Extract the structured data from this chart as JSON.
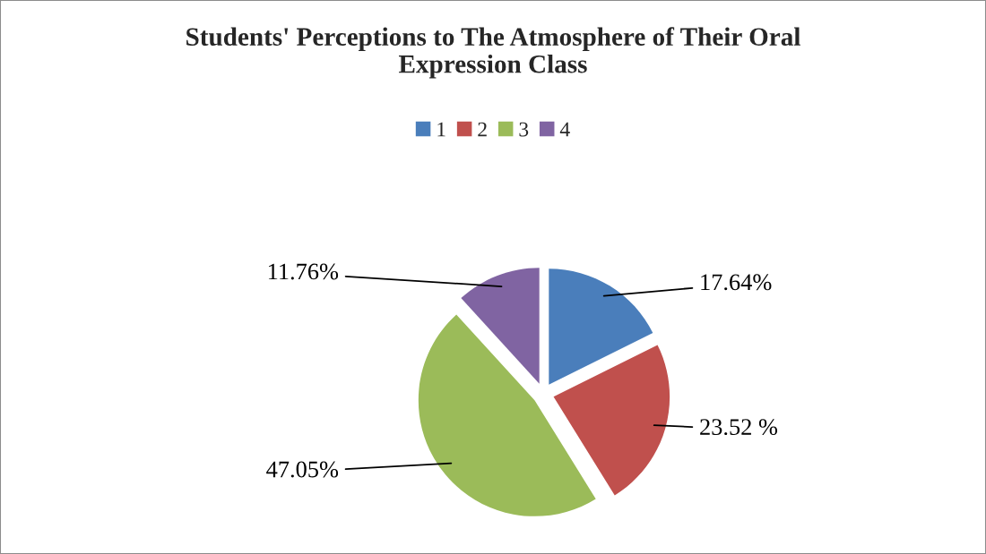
{
  "chart_data": {
    "type": "pie",
    "title": "Students' Perceptions to The Atmosphere of Their Oral Expression Class",
    "categories": [
      "1",
      "2",
      "3",
      "4"
    ],
    "values": [
      17.64,
      23.52,
      47.05,
      11.76
    ],
    "value_labels": [
      "17.64%",
      "23.52 %",
      "47.05%",
      "11.76%"
    ],
    "colors": [
      "#4a7ebb",
      "#c0504d",
      "#9bbb59",
      "#8064a2"
    ],
    "legend": "top"
  }
}
